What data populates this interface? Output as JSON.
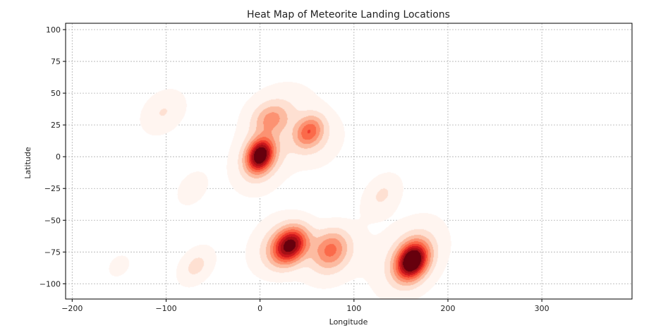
{
  "chart_data": {
    "type": "heatmap",
    "title": "Heat Map of Meteorite Landing Locations",
    "xlabel": "Longitude",
    "ylabel": "Latitude",
    "xlim": [
      -207,
      396
    ],
    "ylim": [
      -112,
      105
    ],
    "xticks": [
      -200,
      -100,
      0,
      100,
      200,
      300
    ],
    "yticks": [
      100,
      75,
      50,
      25,
      0,
      -25,
      -50,
      -75,
      -100
    ],
    "grid": true,
    "colormap": [
      "#fff5f0",
      "#fee0d2",
      "#fcbba1",
      "#fc9272",
      "#fb6a4a",
      "#ef3b2c",
      "#cb181d",
      "#a50f15",
      "#67000d"
    ],
    "density_clusters": [
      {
        "lon": -103,
        "lat": 35,
        "spread_lon": 17,
        "spread_lat": 11,
        "tilt": -22,
        "weight": 0.16
      },
      {
        "lon": -72,
        "lat": -25,
        "spread_lon": 12,
        "spread_lat": 8,
        "tilt": -30,
        "weight": 0.14
      },
      {
        "lon": -150,
        "lat": -86,
        "spread_lon": 9,
        "spread_lat": 6,
        "tilt": -22,
        "weight": 0.11
      },
      {
        "lon": -68,
        "lat": -86,
        "spread_lon": 14,
        "spread_lat": 9,
        "tilt": -28,
        "weight": 0.19
      },
      {
        "lon": 0,
        "lat": 1,
        "spread_lon": 10,
        "spread_lat": 8,
        "tilt": -35,
        "weight": 0.86
      },
      {
        "lon": 2,
        "lat": 0,
        "spread_lon": 22,
        "spread_lat": 16,
        "tilt": -30,
        "weight": 0.25
      },
      {
        "lon": 12,
        "lat": 30,
        "spread_lon": 13,
        "spread_lat": 8,
        "tilt": -8,
        "weight": 0.26
      },
      {
        "lon": 22,
        "lat": 38,
        "spread_lon": 28,
        "spread_lat": 15,
        "tilt": -10,
        "weight": 0.12
      },
      {
        "lon": 52,
        "lat": 20,
        "spread_lon": 11,
        "spread_lat": 8,
        "tilt": -25,
        "weight": 0.45
      },
      {
        "lon": 62,
        "lat": 12,
        "spread_lon": 20,
        "spread_lat": 14,
        "tilt": -20,
        "weight": 0.14
      },
      {
        "lon": 32,
        "lat": -70,
        "spread_lon": 13,
        "spread_lat": 9,
        "tilt": -22,
        "weight": 0.82
      },
      {
        "lon": 20,
        "lat": -70,
        "spread_lon": 22,
        "spread_lat": 15,
        "tilt": -20,
        "weight": 0.2
      },
      {
        "lon": 75,
        "lat": -73,
        "spread_lon": 13,
        "spread_lat": 10,
        "tilt": -18,
        "weight": 0.38
      },
      {
        "lon": 78,
        "lat": -78,
        "spread_lon": 25,
        "spread_lat": 16,
        "tilt": -20,
        "weight": 0.14
      },
      {
        "lon": 130,
        "lat": -30,
        "spread_lon": 15,
        "spread_lat": 10,
        "tilt": -28,
        "weight": 0.17
      },
      {
        "lon": 162,
        "lat": -82,
        "spread_lon": 12,
        "spread_lat": 9,
        "tilt": -30,
        "weight": 1.0
      },
      {
        "lon": 160,
        "lat": -80,
        "spread_lon": 27,
        "spread_lat": 18,
        "tilt": -30,
        "weight": 0.22
      }
    ]
  }
}
